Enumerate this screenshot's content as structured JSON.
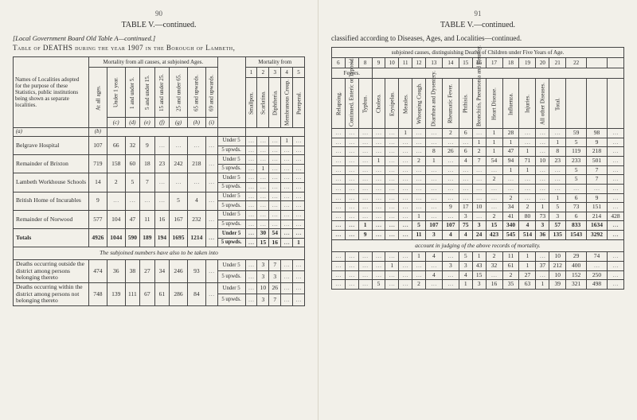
{
  "left": {
    "pagenum": "90",
    "tableTitle": "TABLE  V.—continued.",
    "subhead": "[Local Government Board Old Table A—continued.]",
    "mainhead": "Table of DEATHS during the year 1907 in the Borough of Lambeth,",
    "colgroups": {
      "names": "Names of Localities adopted for the purpose of these Statistics, public institutions being shown as separate localities.",
      "mortAll": "Mortality from all causes, at subjoined Ages.",
      "mortFrom": "Mortality from",
      "atall": "At all ages.",
      "ageCols": [
        "Under 1 year.",
        "1 and under 5.",
        "5 and under 15.",
        "15 and under 25.",
        "25 and under 65.",
        "65 and upwards."
      ],
      "ageSub": "69 and upwards.",
      "causeNums": [
        "1",
        "2",
        "3",
        "4",
        "5"
      ],
      "causes": [
        "Smallpox.",
        "Scarlatina.",
        "Diphtheria.",
        "Membranous Croup.",
        "Puerperal."
      ],
      "alpha": [
        "(a)",
        "(b)",
        "(c)",
        "(d)",
        "(e)",
        "(f)",
        "(g)",
        "(h)",
        "(i)"
      ]
    },
    "rows": [
      {
        "label": "Belgrave Hospital",
        "cells": [
          "107",
          "66",
          "32",
          "9",
          "",
          "",
          "",
          ""
        ],
        "sub": [
          "Under 5",
          "5 upwds."
        ],
        "c": [
          [
            "",
            "",
            "",
            "1",
            ""
          ],
          [
            "",
            "",
            "",
            "",
            ""
          ]
        ]
      },
      {
        "label": "Remainder of Brixton",
        "cells": [
          "719",
          "158",
          "60",
          "18",
          "23",
          "242",
          "218",
          ""
        ],
        "sub": [
          "Under 5",
          "5 upwds."
        ],
        "c": [
          [
            "",
            "",
            "",
            "",
            ""
          ],
          [
            "",
            "1",
            "",
            "",
            ""
          ]
        ]
      },
      {
        "label": "Lambeth Workhouse Schools",
        "cells": [
          "14",
          "2",
          "5",
          "7",
          "",
          "",
          "",
          ""
        ],
        "sub": [
          "Under 5",
          "5 upwds."
        ],
        "c": [
          [
            "",
            "",
            "",
            "",
            ""
          ],
          [
            "",
            "",
            "",
            "",
            ""
          ]
        ]
      },
      {
        "label": "British Home of Incurables",
        "cells": [
          "9",
          "",
          "",
          "",
          "",
          "5",
          "4",
          ""
        ],
        "sub": [
          "Under 5",
          "5 upwds."
        ],
        "c": [
          [
            "",
            "",
            "",
            "",
            ""
          ],
          [
            "",
            "",
            "",
            "",
            ""
          ]
        ]
      },
      {
        "label": "Remainder of Norwood",
        "cells": [
          "577",
          "104",
          "47",
          "11",
          "16",
          "167",
          "232",
          ""
        ],
        "sub": [
          "Under 5",
          "5 upwds."
        ],
        "c": [
          [
            "",
            "",
            "",
            "",
            ""
          ],
          [
            "",
            "",
            "",
            "",
            ""
          ]
        ]
      }
    ],
    "totals": {
      "label": "Totals",
      "cells": [
        "4926",
        "1044",
        "590",
        "189",
        "194",
        "1695",
        "1214",
        ""
      ],
      "sub": [
        "Under 5",
        "5 upwds."
      ],
      "c": [
        [
          "",
          "30",
          "54",
          "",
          ""
        ],
        [
          "",
          "15",
          "16",
          "",
          "1"
        ]
      ]
    },
    "interband": "The subjoined numbers have also to be taken into",
    "rows2": [
      {
        "label": "Deaths occurring outside the district among persons belonging thereto",
        "cells": [
          "474",
          "36",
          "38",
          "27",
          "34",
          "246",
          "93",
          ""
        ],
        "sub": [
          "Under 5",
          "5 upwds."
        ],
        "c": [
          [
            "",
            "3",
            "7",
            "",
            ""
          ],
          [
            "",
            "3",
            "3",
            "",
            ""
          ]
        ]
      },
      {
        "label": "Deaths occurring within the district among persons not belonging thereto",
        "cells": [
          "748",
          "139",
          "111",
          "67",
          "61",
          "286",
          "84",
          ""
        ],
        "sub": [
          "Under 5",
          "5 upwds."
        ],
        "c": [
          [
            "",
            "10",
            "26",
            "",
            ""
          ],
          [
            "",
            "3",
            "7",
            "",
            ""
          ]
        ]
      }
    ]
  },
  "right": {
    "pagenum": "91",
    "tableTitle": "TABLE  V.—continued.",
    "mainhead": "classified according to Diseases, Ages, and Localities—continued.",
    "colgroup": "subjoined causes, distinguishing Deaths of Children under Five Years of Age.",
    "nums": [
      "6",
      "7",
      "8",
      "9",
      "10",
      "11",
      "12",
      "13",
      "14",
      "15",
      "16",
      "17",
      "18",
      "19",
      "20",
      "21",
      "22"
    ],
    "feversLabel": "Fevers.",
    "causes": [
      "Relapsing.",
      "Continued, Enteric or Typhoid.",
      "Typhus.",
      "Cholera.",
      "Erysipelas.",
      "Measles.",
      "Whooping Cough.",
      "Diarrhœa and Dysentery.",
      "Rheumatic Fever.",
      "Phthisis.",
      "Bronchitis, Pneumonia and Pleurisy.",
      "Heart Disease.",
      "Influenza.",
      "Injuries.",
      "All other Diseases.",
      "Total."
    ],
    "rows": [
      [
        [
          "",
          "",
          "",
          "",
          "",
          "1",
          "",
          "",
          "2",
          "6",
          "",
          "1",
          "28",
          "",
          "",
          "",
          "59",
          "98",
          ""
        ],
        [
          "",
          "",
          "",
          "",
          "",
          "",
          "",
          "",
          "",
          "",
          "1",
          "1",
          "1",
          "",
          "",
          "1",
          "5",
          "9",
          ""
        ]
      ],
      [
        [
          "",
          "",
          "",
          "",
          "",
          "",
          "",
          "8",
          "26",
          "6",
          "2",
          "1",
          "47",
          "1",
          "",
          "8",
          "119",
          "218",
          ""
        ],
        [
          "",
          "",
          "",
          "1",
          "",
          "",
          "2",
          "1",
          "",
          "4",
          "7",
          "54",
          "94",
          "71",
          "10",
          "23",
          "233",
          "501",
          ""
        ]
      ],
      [
        [
          "",
          "",
          "",
          "",
          "",
          "",
          "",
          "",
          "",
          "",
          "",
          "",
          "1",
          "1",
          "",
          "",
          "5",
          "7",
          ""
        ],
        [
          "",
          "",
          "",
          "",
          "",
          "",
          "",
          "",
          "",
          "",
          "",
          "2",
          "",
          "",
          "",
          "",
          "5",
          "7",
          ""
        ]
      ],
      [
        [
          "",
          "",
          "",
          "",
          "",
          "",
          "",
          "",
          "",
          "",
          "",
          "",
          "",
          "",
          "",
          "",
          "",
          "",
          ""
        ],
        [
          "",
          "",
          "",
          "",
          "",
          "",
          "",
          "",
          "",
          "",
          "",
          "",
          "2",
          "",
          "",
          "1",
          "6",
          "9",
          ""
        ]
      ],
      [
        [
          "",
          "",
          "",
          "",
          "",
          "",
          "",
          "",
          "9",
          "17",
          "10",
          "",
          "34",
          "2",
          "1",
          "5",
          "73",
          "151",
          ""
        ],
        [
          "",
          "",
          "",
          "",
          "",
          "",
          "1",
          "",
          "",
          "3",
          "",
          "2",
          "41",
          "80",
          "73",
          "3",
          "6",
          "214",
          "428"
        ]
      ]
    ],
    "totals": [
      [
        "",
        "",
        "1",
        "",
        "",
        "",
        "5",
        "107",
        "107",
        "75",
        "3",
        "15",
        "340",
        "4",
        "3",
        "57",
        "833",
        "1634",
        ""
      ],
      [
        "",
        "",
        "9",
        "",
        "",
        "",
        "11",
        "3",
        "4",
        "4",
        "24",
        "423",
        "545",
        "514",
        "36",
        "135",
        "1543",
        "3292",
        ""
      ]
    ],
    "interband": "account in judging of the above records of mortality.",
    "rows2": [
      [
        [
          "",
          "",
          "",
          "",
          "",
          "",
          "1",
          "4",
          "",
          "5",
          "1",
          "2",
          "11",
          "1",
          "",
          "10",
          "29",
          "74",
          ""
        ],
        [
          "",
          "",
          "",
          "",
          "1",
          "",
          "",
          "",
          "3",
          "3",
          "43",
          "32",
          "61",
          "1",
          "37",
          "212",
          "400",
          ""
        ]
      ],
      [
        [
          "",
          "",
          "",
          "",
          "",
          "",
          "",
          "4",
          "",
          "4",
          "15",
          "",
          "2",
          "27",
          "",
          "10",
          "152",
          "250",
          ""
        ],
        [
          "",
          "",
          "",
          "5",
          "",
          "",
          "2",
          "",
          "",
          "1",
          "3",
          "16",
          "35",
          "63",
          "1",
          "39",
          "321",
          "498",
          ""
        ]
      ]
    ]
  }
}
